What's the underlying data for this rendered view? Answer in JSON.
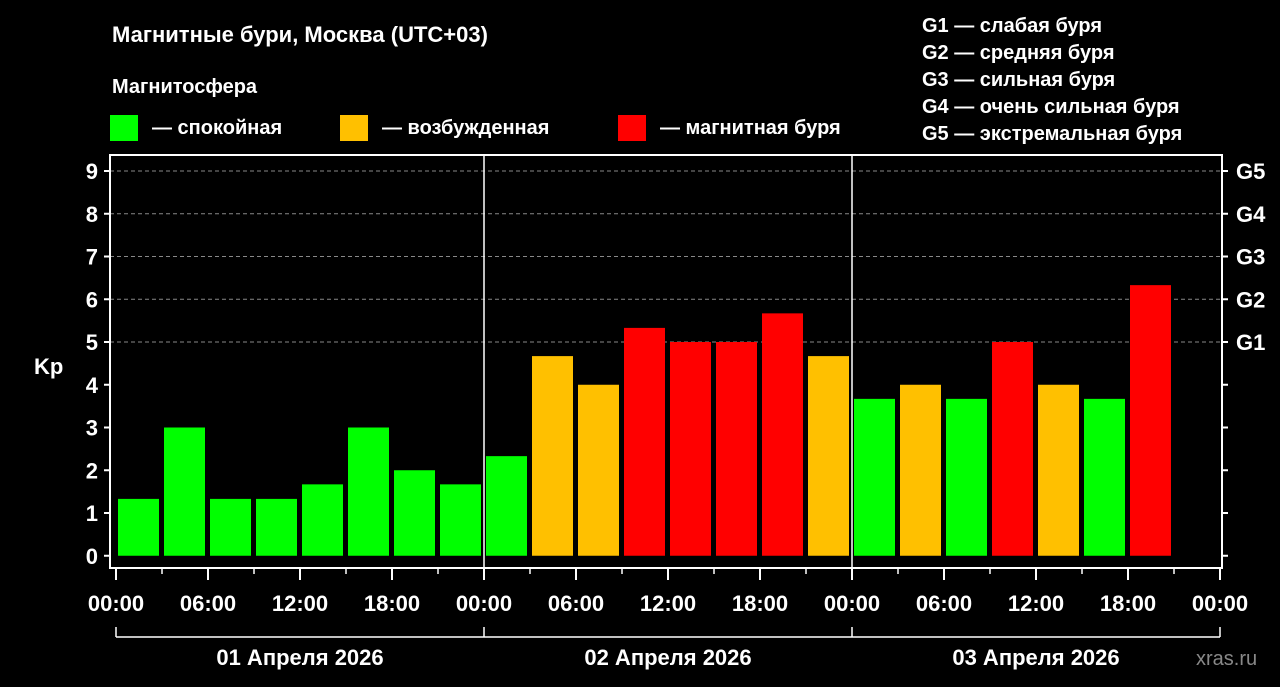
{
  "chart_data": {
    "type": "bar",
    "title": "Магнитные бури, Москва (UTC+03)",
    "legend_title": "Магнитосфера",
    "legend": [
      {
        "label": "— спокойная",
        "color": "#00ff00"
      },
      {
        "label": "— возбужденная",
        "color": "#ffc000"
      },
      {
        "label": "— магнитная буря",
        "color": "#ff0000"
      }
    ],
    "g_legend": [
      "G1 — слабая буря",
      "G2 — средняя буря",
      "G3 — сильная буря",
      "G4 — очень сильная буря",
      "G5 — экстремальная буря"
    ],
    "ylabel": "Kp",
    "ylim": [
      0,
      9
    ],
    "yticks": [
      "0",
      "1",
      "2",
      "3",
      "4",
      "5",
      "6",
      "7",
      "8",
      "9"
    ],
    "right_ticks": [
      {
        "value": 5,
        "label": "G1"
      },
      {
        "value": 6,
        "label": "G2"
      },
      {
        "value": 7,
        "label": "G3"
      },
      {
        "value": 8,
        "label": "G4"
      },
      {
        "value": 9,
        "label": "G5"
      }
    ],
    "grid": "dashed horizontal at 5–9",
    "xtick_labels": [
      "00:00",
      "06:00",
      "12:00",
      "18:00",
      "00:00",
      "06:00",
      "12:00",
      "18:00",
      "00:00",
      "06:00",
      "12:00",
      "18:00",
      "00:00"
    ],
    "days": [
      "01 Апреля 2026",
      "02 Апреля 2026",
      "03 Апреля 2026"
    ],
    "interval_hours": 3,
    "values": [
      1.33,
      3,
      1.33,
      1.33,
      1.67,
      3,
      2,
      1.67,
      2.33,
      4.67,
      4,
      5.33,
      5,
      5,
      5.67,
      4.67,
      3.67,
      4,
      3.67,
      5,
      4,
      3.67,
      6.33
    ],
    "colors": [
      "#00ff00",
      "#00ff00",
      "#00ff00",
      "#00ff00",
      "#00ff00",
      "#00ff00",
      "#00ff00",
      "#00ff00",
      "#00ff00",
      "#ffc000",
      "#ffc000",
      "#ff0000",
      "#ff0000",
      "#ff0000",
      "#ff0000",
      "#ffc000",
      "#00ff00",
      "#ffc000",
      "#00ff00",
      "#ff0000",
      "#ffc000",
      "#00ff00",
      "#ff0000"
    ],
    "watermark": "xras.ru"
  }
}
